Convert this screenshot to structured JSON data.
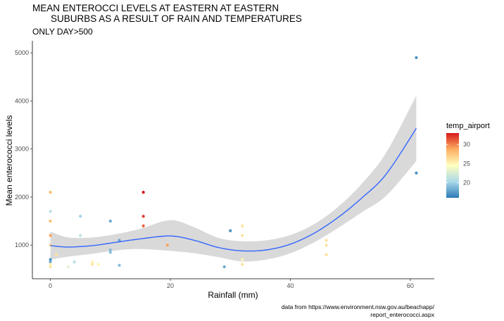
{
  "chart_data": {
    "type": "scatter",
    "title_lines": [
      "MEAN ENTEROCCI LEVELS AT EASTERN AT EASTERN",
      "SUBURBS AS A RESULT OF RAIN AND TEMPERATURES"
    ],
    "subtitle": "ONLY DAY>500",
    "xlabel": "Rainfall (mm)",
    "ylabel": "Mean enterococci levels",
    "xlim": [
      -3,
      64
    ],
    "ylim": [
      300,
      5250
    ],
    "x_ticks": [
      0,
      20,
      40,
      60
    ],
    "y_ticks": [
      1000,
      2000,
      3000,
      4000,
      5000
    ],
    "x_tick_labels": [
      "0",
      "20",
      "40",
      "60"
    ],
    "y_tick_labels": [
      "1000",
      "2000",
      "3000",
      "4000",
      "5000"
    ],
    "grid": false,
    "legend": {
      "title": "temp_airport",
      "position": "right",
      "range": [
        16,
        33
      ],
      "ticks": [
        20,
        25,
        30
      ],
      "tick_labels": [
        "20",
        "25",
        "30"
      ],
      "colors": [
        "#2c7bb6",
        "#abd9e9",
        "#ffffbf",
        "#fdae61",
        "#d7191c"
      ]
    },
    "points": [
      {
        "x": 0,
        "y": 2100,
        "temp": 28
      },
      {
        "x": 0,
        "y": 1700,
        "temp": 21
      },
      {
        "x": 0,
        "y": 1500,
        "temp": 28
      },
      {
        "x": 0,
        "y": 1200,
        "temp": 29
      },
      {
        "x": 0,
        "y": 1000,
        "temp": 27
      },
      {
        "x": 0,
        "y": 700,
        "temp": 17
      },
      {
        "x": 0,
        "y": 650,
        "temp": 18
      },
      {
        "x": 0,
        "y": 600,
        "temp": 25
      },
      {
        "x": 0,
        "y": 550,
        "temp": 26
      },
      {
        "x": 1,
        "y": 800,
        "temp": 26
      },
      {
        "x": 3,
        "y": 550,
        "temp": 23
      },
      {
        "x": 4,
        "y": 650,
        "temp": 21
      },
      {
        "x": 5,
        "y": 1600,
        "temp": 20
      },
      {
        "x": 5,
        "y": 1200,
        "temp": 21
      },
      {
        "x": 7,
        "y": 650,
        "temp": 25
      },
      {
        "x": 7,
        "y": 600,
        "temp": 26
      },
      {
        "x": 8,
        "y": 600,
        "temp": 25
      },
      {
        "x": 10,
        "y": 1500,
        "temp": 18
      },
      {
        "x": 10,
        "y": 900,
        "temp": 19
      },
      {
        "x": 10,
        "y": 850,
        "temp": 19
      },
      {
        "x": 11.5,
        "y": 1100,
        "temp": 18
      },
      {
        "x": 11.5,
        "y": 580,
        "temp": 19
      },
      {
        "x": 15.5,
        "y": 2100,
        "temp": 33
      },
      {
        "x": 15.5,
        "y": 1600,
        "temp": 32
      },
      {
        "x": 15.5,
        "y": 1400,
        "temp": 31
      },
      {
        "x": 19.5,
        "y": 1000,
        "temp": 29
      },
      {
        "x": 29,
        "y": 550,
        "temp": 18
      },
      {
        "x": 30,
        "y": 1300,
        "temp": 17
      },
      {
        "x": 32,
        "y": 1400,
        "temp": 26
      },
      {
        "x": 32,
        "y": 1200,
        "temp": 26
      },
      {
        "x": 32,
        "y": 700,
        "temp": 25
      },
      {
        "x": 32,
        "y": 600,
        "temp": 26
      },
      {
        "x": 46,
        "y": 1100,
        "temp": 26
      },
      {
        "x": 46,
        "y": 1000,
        "temp": 26
      },
      {
        "x": 46,
        "y": 800,
        "temp": 26
      },
      {
        "x": 61,
        "y": 4900,
        "temp": 17
      },
      {
        "x": 61,
        "y": 2500,
        "temp": 17
      }
    ],
    "smooth": {
      "method": "loess",
      "color": "#3366ff",
      "ribbon_color": "#d9d9d9",
      "fit": [
        {
          "x": 0,
          "y": 990,
          "lower": 700,
          "upper": 1280
        },
        {
          "x": 3,
          "y": 960,
          "lower": 760,
          "upper": 1160
        },
        {
          "x": 7,
          "y": 990,
          "lower": 820,
          "upper": 1160
        },
        {
          "x": 11,
          "y": 1060,
          "lower": 890,
          "upper": 1230
        },
        {
          "x": 15,
          "y": 1130,
          "lower": 920,
          "upper": 1340
        },
        {
          "x": 20,
          "y": 1190,
          "lower": 880,
          "upper": 1520
        },
        {
          "x": 24,
          "y": 1100,
          "lower": 830,
          "upper": 1370
        },
        {
          "x": 28,
          "y": 950,
          "lower": 750,
          "upper": 1150
        },
        {
          "x": 32,
          "y": 880,
          "lower": 660,
          "upper": 1080
        },
        {
          "x": 36,
          "y": 900,
          "lower": 700,
          "upper": 1100
        },
        {
          "x": 40,
          "y": 1020,
          "lower": 830,
          "upper": 1210
        },
        {
          "x": 44,
          "y": 1250,
          "lower": 1060,
          "upper": 1440
        },
        {
          "x": 48,
          "y": 1580,
          "lower": 1360,
          "upper": 1800
        },
        {
          "x": 52,
          "y": 1990,
          "lower": 1690,
          "upper": 2290
        },
        {
          "x": 56,
          "y": 2480,
          "lower": 2030,
          "upper": 2930
        },
        {
          "x": 61,
          "y": 3430,
          "lower": 2750,
          "upper": 4110
        }
      ]
    },
    "caption_lines": [
      "data from https://www.environment.nsw.gov.au/beachapp/",
      "report_enterococci.aspx"
    ]
  }
}
